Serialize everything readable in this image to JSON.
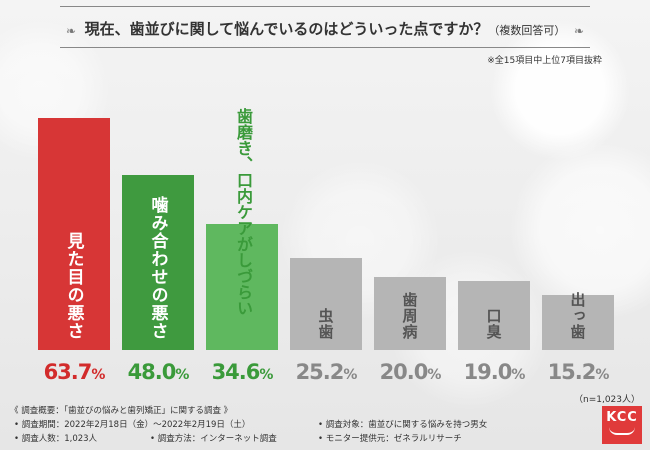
{
  "header": {
    "title": "現在、歯並びに関して悩んでいるのはどういった点ですか？",
    "title_sub": "（複数回答可）",
    "note": "※全15項目中上位7項目抜粋"
  },
  "chart_data": {
    "type": "bar",
    "title": "現在、歯並びに関して悩んでいるのはどういった点ですか？（複数回答可）",
    "categories": [
      "見た目の悪さ",
      "噛み合わせの悪さ",
      "歯磨き、口内ケアがしづらい",
      "虫歯",
      "歯周病",
      "口臭",
      "出っ歯"
    ],
    "values": [
      63.7,
      48.0,
      34.6,
      25.2,
      20.0,
      19.0,
      15.2
    ],
    "value_labels": [
      "63.7",
      "48.0",
      "34.6",
      "25.2",
      "20.0",
      "19.0",
      "15.2"
    ],
    "unit": "%",
    "colors": [
      "#d73636",
      "#3f9a3f",
      "#5fb85f",
      "#b5b5b5",
      "#b5b5b5",
      "#b5b5b5",
      "#b5b5b5"
    ],
    "ylim": [
      0,
      70
    ],
    "sample_note": "（n=1,023人）"
  },
  "footer": {
    "l1": "《 調査概要：「歯並びの悩みと歯列矯正」に関する調査 》",
    "l2": "• 調査期間：2022年2月18日（金）〜2022年2月19日（土）",
    "l3": "• 調査人数：1,023人",
    "l4": "• 調査方法：インターネット調査",
    "r1": "• 調査対象：歯並びに関する悩みを持つ男女",
    "r2": "• モニター提供元：ゼネラルリサーチ"
  },
  "logo": {
    "text": "KCC"
  }
}
